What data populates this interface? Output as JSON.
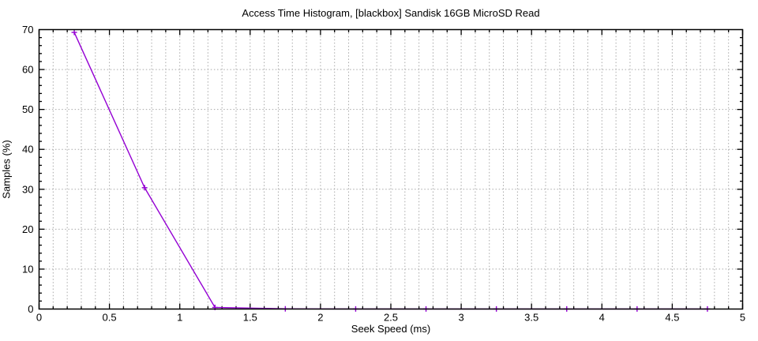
{
  "page": {
    "background": "#ffffff"
  },
  "chart_data": {
    "type": "line",
    "title": "Access Time Histogram, [blackbox] Sandisk 16GB MicroSD Read",
    "xlabel": "Seek Speed (ms)",
    "ylabel": "Samples (%)",
    "xlim": [
      0,
      5
    ],
    "ylim": [
      0,
      70
    ],
    "xtick_values": [
      0,
      0.5,
      1,
      1.5,
      2,
      2.5,
      3,
      3.5,
      4,
      4.5,
      5
    ],
    "xtick_labels": [
      "0",
      "0.5",
      "1",
      "1.5",
      "2",
      "2.5",
      "3",
      "3.5",
      "4",
      "4.5",
      "5"
    ],
    "ytick_values": [
      0,
      10,
      20,
      30,
      40,
      50,
      60,
      70
    ],
    "ytick_labels": [
      "0",
      "10",
      "20",
      "30",
      "40",
      "50",
      "60",
      "70"
    ],
    "x_minor_step": 0.1,
    "y_minor_step": 2,
    "grid": {
      "vertical_every": 0.1,
      "horizontal_every": 10,
      "style": "dotted",
      "mirrored_ticks": true
    },
    "legend": "none",
    "series": [
      {
        "name": "access-time-histogram",
        "color": "#9400D3",
        "marker": "plus",
        "line": true,
        "x": [
          0.25,
          0.75,
          1.25,
          1.75,
          2.25,
          2.75,
          3.25,
          3.75,
          4.25,
          4.75
        ],
        "y": [
          69.3,
          30.4,
          0.4,
          0.05,
          0.02,
          0.02,
          0.02,
          0.02,
          0.02,
          0.02
        ]
      }
    ],
    "colors": {
      "axis": "#000000",
      "grid": "#a8a8a8",
      "text": "#000000",
      "background": "#ffffff"
    }
  }
}
